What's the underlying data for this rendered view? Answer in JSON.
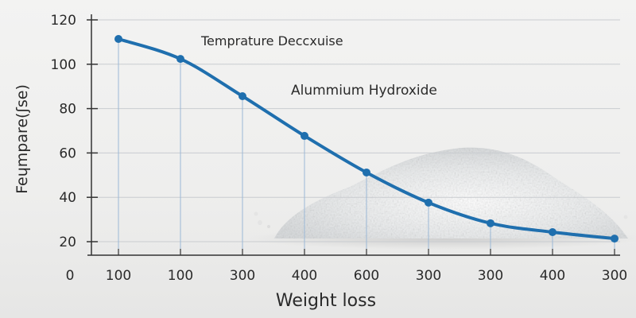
{
  "chart_data": {
    "type": "line",
    "title": "",
    "annotations": [
      "Temprature Deccxuise",
      "Alummium Hydroxide"
    ],
    "xlabel": "Weight loss",
    "ylabel": "Feɥmpare(ʃse)",
    "x_origin_label": "0",
    "categories": [
      "100",
      "100",
      "300",
      "400",
      "600",
      "300",
      "300",
      "400",
      "300"
    ],
    "values": [
      111.4,
      102.4,
      85.6,
      67.7,
      51.2,
      37.6,
      28.3,
      24.3,
      21.4
    ],
    "yticks": [
      20,
      40,
      60,
      80,
      100,
      120
    ],
    "ylim": [
      14,
      120
    ],
    "grid": true,
    "line_color": "#1f6fae",
    "background": "photo of white aluminium hydroxide powder pile"
  }
}
